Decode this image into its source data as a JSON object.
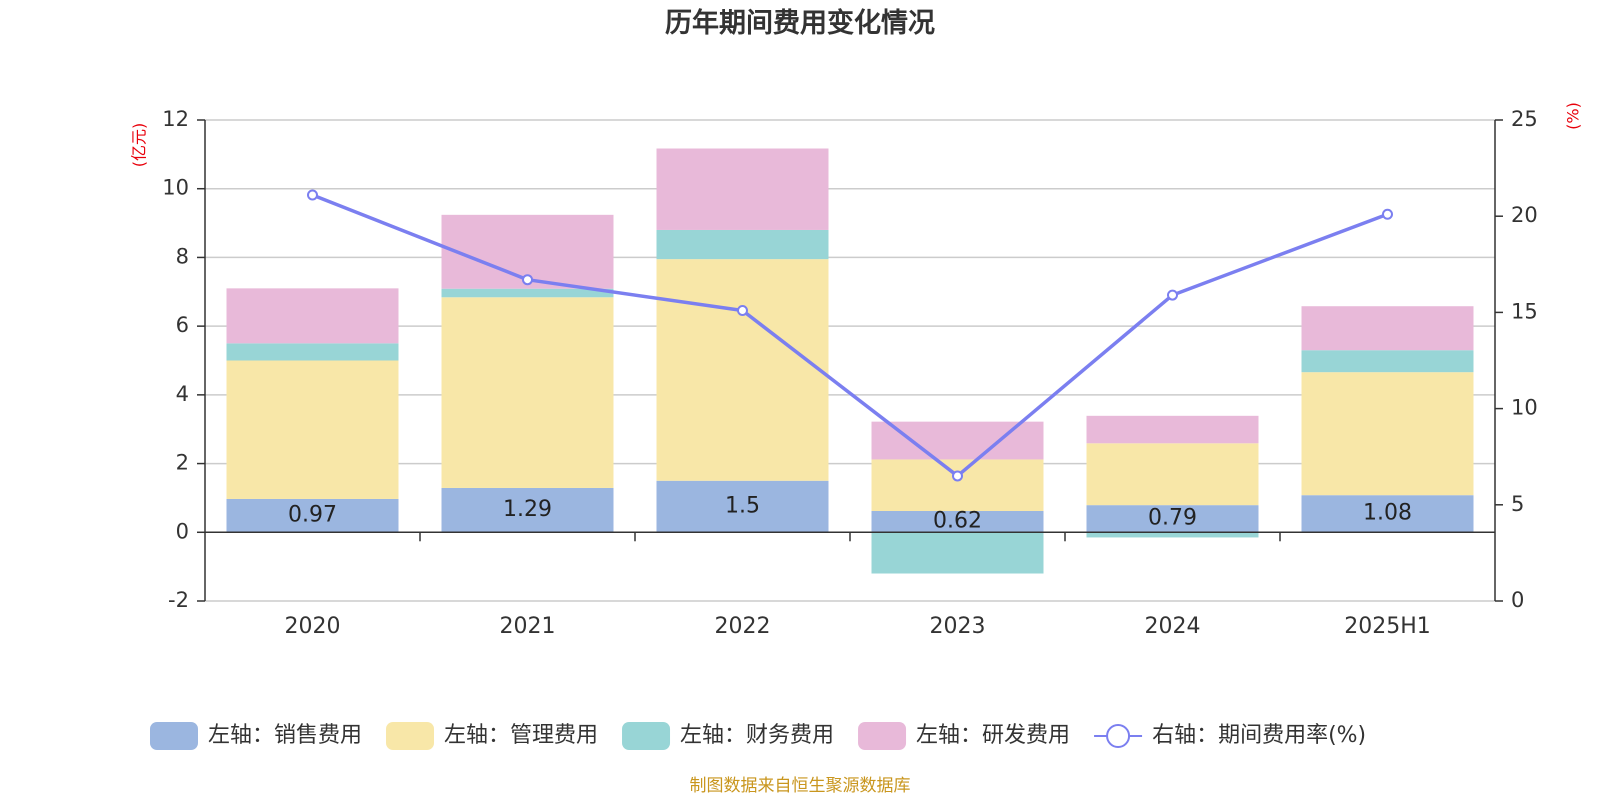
{
  "title": "历年期间费用变化情况",
  "footer": "制图数据来自恒生聚源数据库",
  "chart_data": {
    "type": "bar",
    "stacked": true,
    "categories": [
      "2020",
      "2021",
      "2022",
      "2023",
      "2024",
      "2025H1"
    ],
    "left_axis": {
      "unit": "(亿元)",
      "ylim": [
        -2,
        12
      ],
      "ticks": [
        -2,
        0,
        2,
        4,
        6,
        8,
        10,
        12
      ]
    },
    "right_axis": {
      "unit": "(%)",
      "ylim": [
        0,
        25
      ],
      "ticks": [
        0,
        5,
        10,
        15,
        20,
        25
      ]
    },
    "grid": true,
    "legend_position": "bottom",
    "series": [
      {
        "name": "左轴：销售费用",
        "color": "#9bb6e0",
        "axis": "left",
        "values": [
          0.97,
          1.29,
          1.5,
          0.62,
          0.79,
          1.08
        ],
        "labels": [
          "0.97",
          "1.29",
          "1.5",
          "0.62",
          "0.79",
          "1.08"
        ]
      },
      {
        "name": "左轴：管理费用",
        "color": "#f8e7a8",
        "axis": "left",
        "values": [
          4.03,
          5.55,
          6.45,
          1.5,
          1.8,
          3.58
        ]
      },
      {
        "name": "左轴：财务费用",
        "color": "#98d5d6",
        "axis": "left",
        "values": [
          0.5,
          0.25,
          0.85,
          -1.2,
          -0.15,
          0.64
        ]
      },
      {
        "name": "左轴：研发费用",
        "color": "#e8b9d9",
        "axis": "left",
        "values": [
          1.6,
          2.15,
          2.37,
          1.1,
          0.8,
          1.28
        ]
      },
      {
        "name": "右轴：期间费用率(%)",
        "color": "#7b7ff0",
        "axis": "right",
        "type": "line",
        "values": [
          21.1,
          16.7,
          15.1,
          6.5,
          15.9,
          20.1
        ]
      }
    ]
  }
}
